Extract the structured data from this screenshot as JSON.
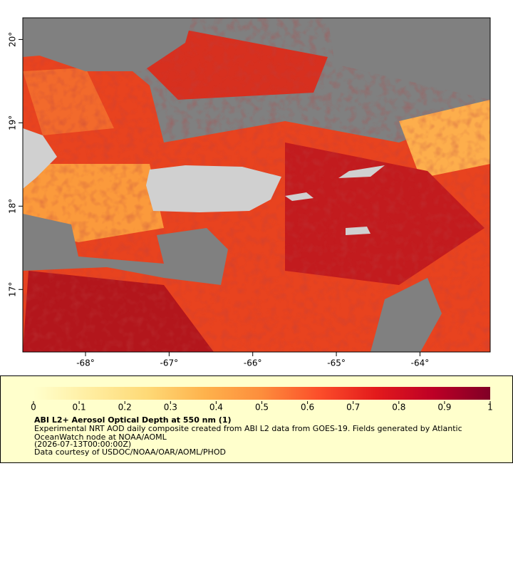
{
  "map": {
    "lon_range": [
      -68.75,
      -63.16
    ],
    "lat_range": [
      16.25,
      20.26
    ],
    "xticks": [
      {
        "value": -68,
        "label": "-68°"
      },
      {
        "value": -67,
        "label": "-67°"
      },
      {
        "value": -66,
        "label": "-66°"
      },
      {
        "value": -65,
        "label": "-65°"
      },
      {
        "value": -64,
        "label": "-64°"
      }
    ],
    "yticks": [
      {
        "value": 17,
        "label": "17°"
      },
      {
        "value": 18,
        "label": "18°"
      },
      {
        "value": 19,
        "label": "19°"
      },
      {
        "value": 20,
        "label": "20°"
      }
    ]
  },
  "colorbar": {
    "range": [
      0,
      1
    ],
    "ticks": [
      0,
      0.1,
      0.2,
      0.3,
      0.4,
      0.5,
      0.6,
      0.7,
      0.8,
      0.9,
      1
    ],
    "colors": [
      "#ffffcc",
      "#ffeda0",
      "#fed976",
      "#feb24c",
      "#fd8d3c",
      "#fc4e2a",
      "#e31a1c",
      "#bd0026",
      "#800026"
    ]
  },
  "legend": {
    "title": "ABI L2+ Aerosol Optical Depth at 550 nm (1)",
    "lines": [
      "Experimental NRT AOD daily composite created from ABI L2 data from GOES-19. Fields generated by Atlantic",
      "OceanWatch node at NOAA/AOML",
      "(2026-07-13T00:00:00Z)",
      "Data courtesy of USDOC/NOAA/OAR/AOML/PHOD"
    ]
  }
}
